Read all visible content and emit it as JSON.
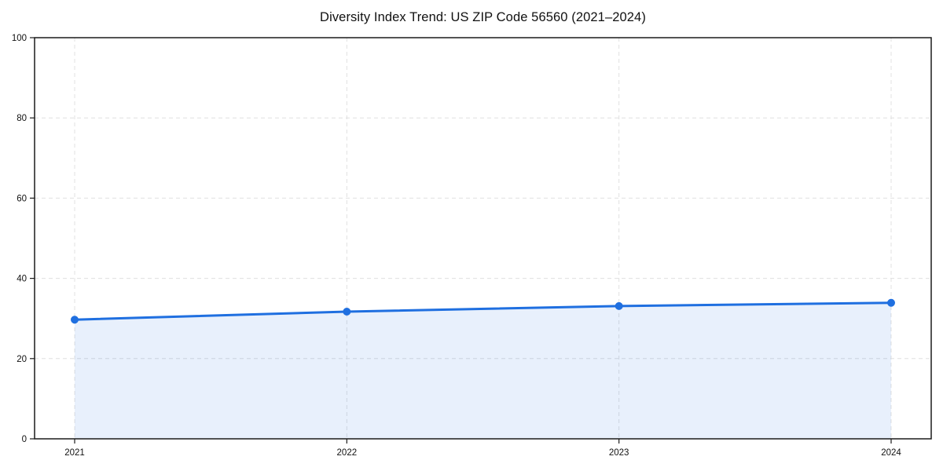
{
  "page": {
    "background": "#ffffff"
  },
  "chart_data": {
    "type": "area",
    "title": "Diversity Index Trend: US ZIP Code 56560 (2021–2024)",
    "categories": [
      "2021",
      "2022",
      "2023",
      "2024"
    ],
    "values": [
      29.7,
      31.7,
      33.1,
      33.9
    ],
    "xlabel": "",
    "ylabel": "",
    "ylim": [
      0,
      100
    ],
    "yticks": [
      0,
      20,
      40,
      60,
      80,
      100
    ],
    "grid": "dashed-both-axes",
    "legend": "none",
    "marker": "circle",
    "colors": {
      "line": "#1f6fe0",
      "marker": "#1f6fe0",
      "area_fill": "rgba(31,111,224,0.10)",
      "grid": "#e0e0e0",
      "spine": "#1a1a1a",
      "text": "#111111"
    }
  }
}
